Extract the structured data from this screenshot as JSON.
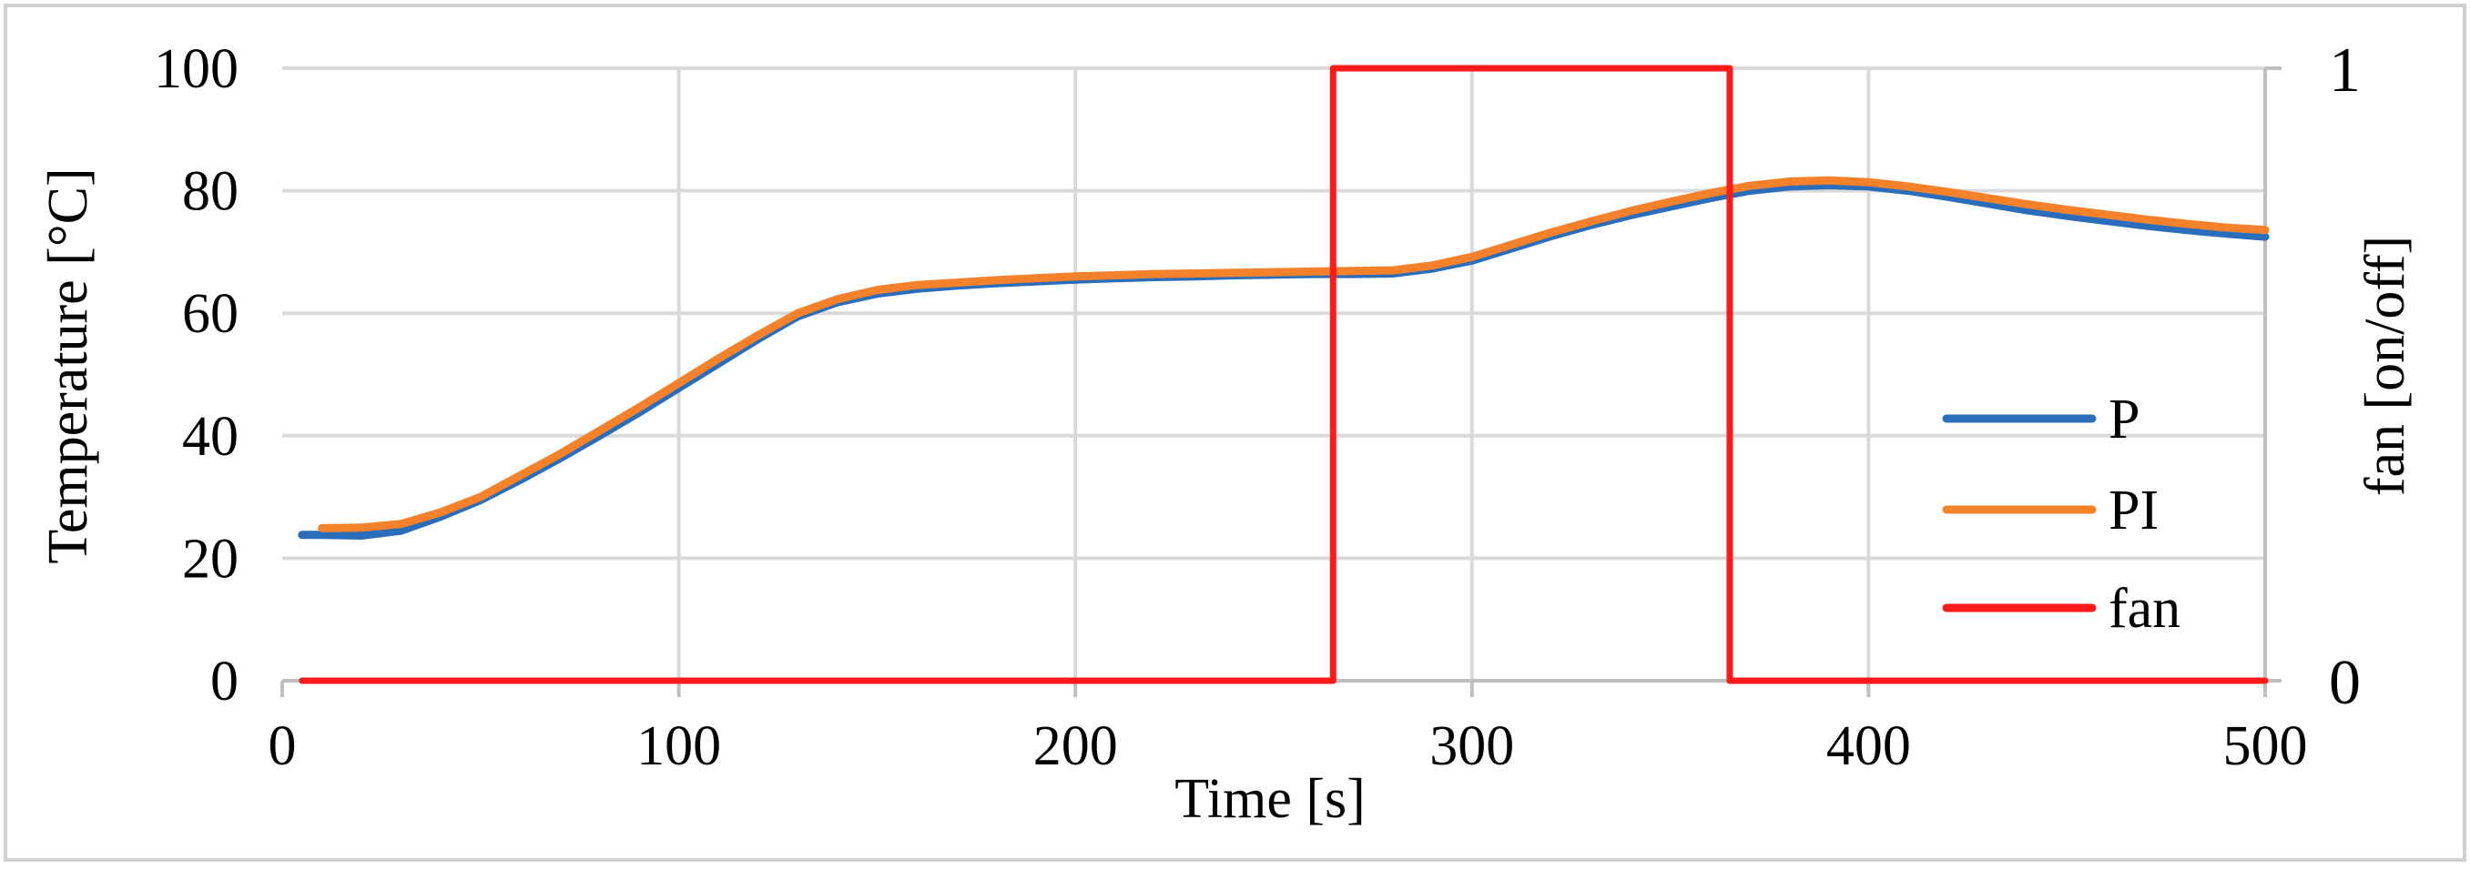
{
  "chart_data": {
    "type": "line",
    "xlabel": "Time [s]",
    "ylabel": "Temperature [°C]",
    "y2label": "fan [on/off]",
    "xlim": [
      0,
      500
    ],
    "ylim": [
      0,
      100
    ],
    "y2lim": [
      0,
      1
    ],
    "x_ticks": [
      "0",
      "100",
      "200",
      "300",
      "400",
      "500"
    ],
    "y_ticks": [
      "0",
      "20",
      "40",
      "60",
      "80",
      "100"
    ],
    "y2_ticks": [
      "0",
      "1"
    ],
    "grid": true,
    "legend_position": "bottom-right",
    "series": [
      {
        "name": "P",
        "color": "#2a6ebb",
        "axis": "left",
        "points": [
          [
            5,
            23.8
          ],
          [
            10,
            23.8
          ],
          [
            20,
            23.7
          ],
          [
            30,
            24.5
          ],
          [
            40,
            26.8
          ],
          [
            50,
            29.5
          ],
          [
            60,
            32.8
          ],
          [
            70,
            36.3
          ],
          [
            80,
            40.0
          ],
          [
            90,
            43.8
          ],
          [
            100,
            47.8
          ],
          [
            110,
            51.8
          ],
          [
            120,
            55.8
          ],
          [
            130,
            59.5
          ],
          [
            140,
            61.8
          ],
          [
            150,
            63.2
          ],
          [
            160,
            64.0
          ],
          [
            170,
            64.5
          ],
          [
            180,
            64.9
          ],
          [
            190,
            65.2
          ],
          [
            200,
            65.5
          ],
          [
            210,
            65.7
          ],
          [
            220,
            65.9
          ],
          [
            230,
            66.0
          ],
          [
            240,
            66.2
          ],
          [
            250,
            66.3
          ],
          [
            260,
            66.4
          ],
          [
            270,
            66.4
          ],
          [
            280,
            66.5
          ],
          [
            290,
            67.3
          ],
          [
            300,
            68.6
          ],
          [
            310,
            70.6
          ],
          [
            320,
            72.6
          ],
          [
            330,
            74.4
          ],
          [
            340,
            76.0
          ],
          [
            350,
            77.4
          ],
          [
            360,
            78.8
          ],
          [
            370,
            80.0
          ],
          [
            380,
            80.7
          ],
          [
            390,
            80.9
          ],
          [
            400,
            80.7
          ],
          [
            410,
            80.0
          ],
          [
            420,
            79.0
          ],
          [
            430,
            77.9
          ],
          [
            440,
            76.8
          ],
          [
            450,
            75.9
          ],
          [
            460,
            75.1
          ],
          [
            470,
            74.3
          ],
          [
            480,
            73.6
          ],
          [
            490,
            73.0
          ],
          [
            500,
            72.5
          ]
        ]
      },
      {
        "name": "PI",
        "color": "#f5822a",
        "axis": "left",
        "points": [
          [
            10,
            24.9
          ],
          [
            20,
            25.0
          ],
          [
            30,
            25.6
          ],
          [
            40,
            27.5
          ],
          [
            50,
            30.0
          ],
          [
            60,
            33.5
          ],
          [
            70,
            37.0
          ],
          [
            80,
            40.8
          ],
          [
            90,
            44.6
          ],
          [
            100,
            48.6
          ],
          [
            110,
            52.6
          ],
          [
            120,
            56.4
          ],
          [
            130,
            60.0
          ],
          [
            140,
            62.3
          ],
          [
            150,
            63.8
          ],
          [
            160,
            64.6
          ],
          [
            170,
            65.0
          ],
          [
            180,
            65.4
          ],
          [
            190,
            65.7
          ],
          [
            200,
            66.0
          ],
          [
            210,
            66.2
          ],
          [
            220,
            66.4
          ],
          [
            230,
            66.5
          ],
          [
            240,
            66.6
          ],
          [
            250,
            66.7
          ],
          [
            260,
            66.8
          ],
          [
            270,
            66.9
          ],
          [
            280,
            67.0
          ],
          [
            290,
            67.8
          ],
          [
            300,
            69.2
          ],
          [
            310,
            71.2
          ],
          [
            320,
            73.2
          ],
          [
            330,
            75.0
          ],
          [
            340,
            76.7
          ],
          [
            350,
            78.2
          ],
          [
            360,
            79.6
          ],
          [
            370,
            80.8
          ],
          [
            380,
            81.5
          ],
          [
            390,
            81.7
          ],
          [
            400,
            81.4
          ],
          [
            410,
            80.7
          ],
          [
            420,
            79.8
          ],
          [
            430,
            78.8
          ],
          [
            440,
            77.8
          ],
          [
            450,
            76.9
          ],
          [
            460,
            76.1
          ],
          [
            470,
            75.3
          ],
          [
            480,
            74.6
          ],
          [
            490,
            74.0
          ],
          [
            500,
            73.6
          ]
        ]
      },
      {
        "name": "fan",
        "color": "#ff1a1a",
        "axis": "right",
        "points": [
          [
            5,
            0
          ],
          [
            265,
            0
          ],
          [
            265,
            1
          ],
          [
            365,
            1
          ],
          [
            365,
            0
          ],
          [
            500,
            0
          ]
        ]
      }
    ]
  }
}
